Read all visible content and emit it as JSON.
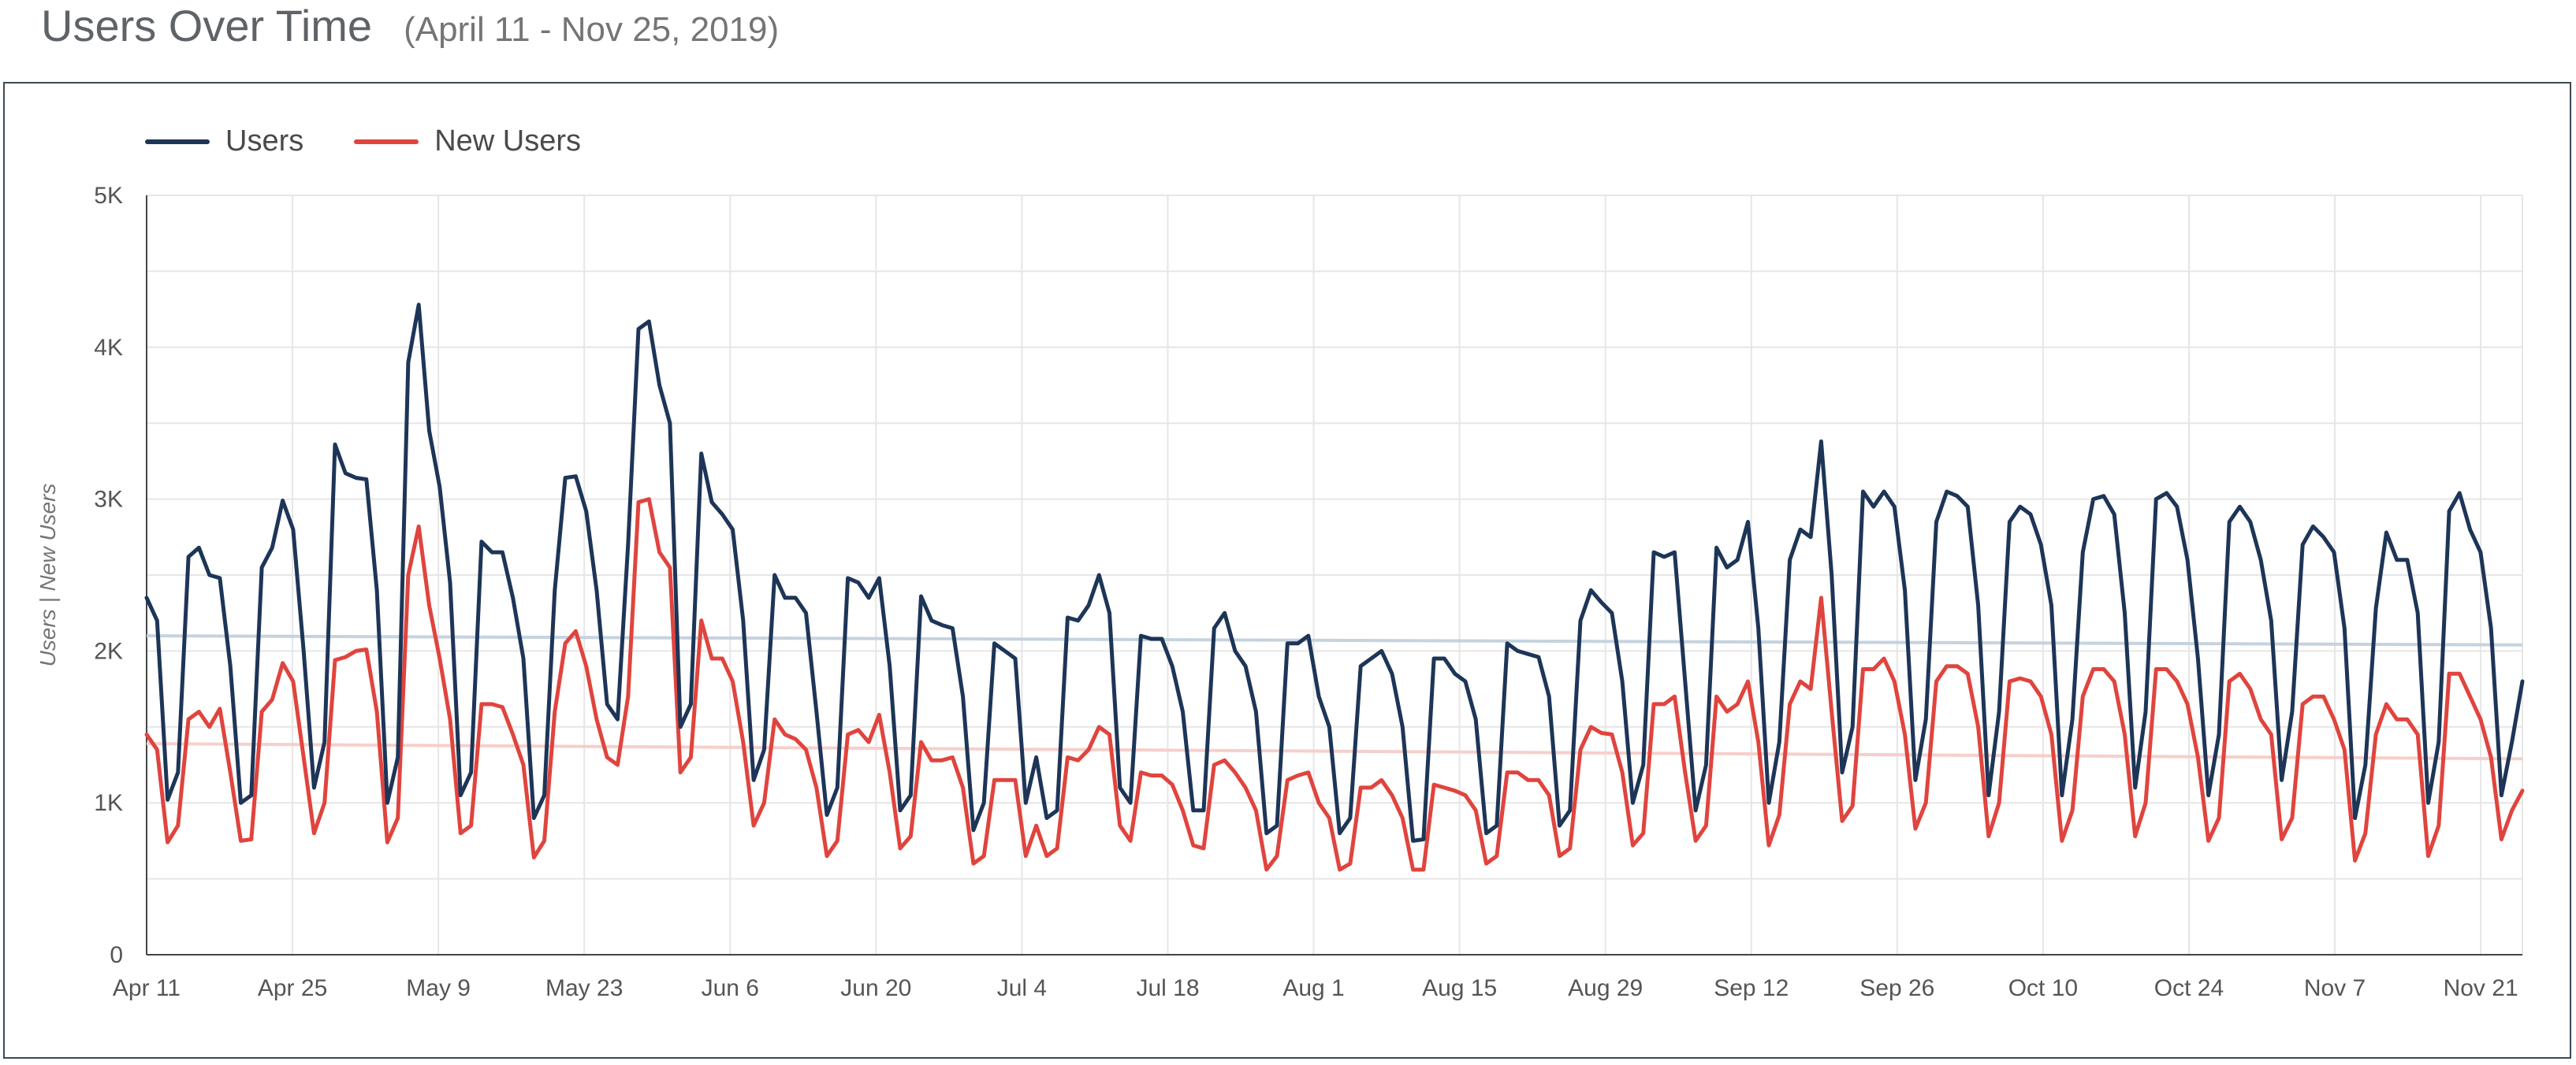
{
  "header": {
    "title": "Users Over Time",
    "subtitle": "(April 11 - Nov 25, 2019)"
  },
  "colors": {
    "users": "#1d3557",
    "new_users": "#e0443e",
    "users_trend": "#c5d3df",
    "new_users_trend": "#f6cfcb",
    "grid": "#e6e6e6"
  },
  "chart_data": {
    "type": "line",
    "title": "Users Over Time",
    "subtitle": "(April 11 - Nov 25, 2019)",
    "xlabel": "",
    "ylabel": "Users | New Users",
    "ylim": [
      0,
      5000
    ],
    "y_ticks": [
      "0",
      "1K",
      "2K",
      "3K",
      "4K",
      "5K"
    ],
    "x_range": [
      "2019-04-11",
      "2019-11-25"
    ],
    "x_ticks": [
      {
        "date": "2019-04-11",
        "label": "Apr 11"
      },
      {
        "date": "2019-04-25",
        "label": "Apr 25"
      },
      {
        "date": "2019-05-09",
        "label": "May 9"
      },
      {
        "date": "2019-05-23",
        "label": "May 23"
      },
      {
        "date": "2019-06-06",
        "label": "Jun 6"
      },
      {
        "date": "2019-06-20",
        "label": "Jun 20"
      },
      {
        "date": "2019-07-04",
        "label": "Jul 4"
      },
      {
        "date": "2019-07-18",
        "label": "Jul 18"
      },
      {
        "date": "2019-08-01",
        "label": "Aug 1"
      },
      {
        "date": "2019-08-15",
        "label": "Aug 15"
      },
      {
        "date": "2019-08-29",
        "label": "Aug 29"
      },
      {
        "date": "2019-09-12",
        "label": "Sep 12"
      },
      {
        "date": "2019-09-26",
        "label": "Sep 26"
      },
      {
        "date": "2019-10-10",
        "label": "Oct 10"
      },
      {
        "date": "2019-10-24",
        "label": "Oct 24"
      },
      {
        "date": "2019-11-07",
        "label": "Nov 7"
      },
      {
        "date": "2019-11-21",
        "label": "Nov 21"
      }
    ],
    "legend_position": "top-left",
    "grid": true,
    "series": [
      {
        "name": "Users",
        "values": [
          2350,
          2200,
          1020,
          1200,
          2620,
          2680,
          2500,
          2480,
          1900,
          1000,
          1050,
          2550,
          2680,
          2990,
          2800,
          2000,
          1100,
          1400,
          3360,
          3170,
          3140,
          3130,
          2400,
          1000,
          1300,
          3900,
          4280,
          3450,
          3080,
          2450,
          1050,
          1200,
          2720,
          2650,
          2650,
          2350,
          1950,
          900,
          1050,
          2400,
          3140,
          3150,
          2920,
          2400,
          1650,
          1550,
          2700,
          4120,
          4170,
          3750,
          3500,
          1500,
          1650,
          3300,
          2980,
          2900,
          2800,
          2200,
          1150,
          1350,
          2500,
          2350,
          2350,
          2250,
          1600,
          920,
          1100,
          2480,
          2450,
          2350,
          2480,
          1900,
          950,
          1050,
          2360,
          2200,
          2170,
          2150,
          1700,
          820,
          1000,
          2050,
          2000,
          1950,
          1000,
          1300,
          900,
          950,
          2220,
          2200,
          2300,
          2500,
          2250,
          1100,
          1000,
          2100,
          2080,
          2080,
          1900,
          1600,
          950,
          950,
          2150,
          2250,
          2000,
          1900,
          1600,
          800,
          850,
          2050,
          2050,
          2100,
          1700,
          1500,
          800,
          900,
          1900,
          1950,
          2000,
          1850,
          1500,
          750,
          760,
          1950,
          1950,
          1850,
          1800,
          1550,
          800,
          850,
          2050,
          2000,
          1980,
          1960,
          1700,
          850,
          950,
          2200,
          2400,
          2320,
          2250,
          1800,
          1000,
          1250,
          2650,
          2620,
          2650,
          1800,
          950,
          1250,
          2680,
          2550,
          2600,
          2850,
          2150,
          1000,
          1400,
          2600,
          2800,
          2750,
          3380,
          2500,
          1200,
          1500,
          3050,
          2950,
          3050,
          2950,
          2400,
          1150,
          1550,
          2850,
          3050,
          3020,
          2950,
          2300,
          1050,
          1600,
          2850,
          2950,
          2900,
          2700,
          2300,
          1050,
          1550,
          2650,
          3000,
          3020,
          2900,
          2250,
          1100,
          1600,
          3000,
          3040,
          2950,
          2600,
          1950,
          1050,
          1450,
          2850,
          2950,
          2850,
          2600,
          2200,
          1150,
          1600,
          2700,
          2820,
          2750,
          2650,
          2150,
          900,
          1250,
          2280,
          2780,
          2600,
          2600,
          2250,
          1000,
          1400,
          2920,
          3040,
          2800,
          2650,
          2150,
          1050,
          1400,
          1800
        ]
      },
      {
        "name": "New Users",
        "values": [
          1450,
          1350,
          740,
          850,
          1550,
          1600,
          1500,
          1620,
          1200,
          750,
          760,
          1600,
          1680,
          1920,
          1800,
          1300,
          800,
          1000,
          1940,
          1960,
          2000,
          2010,
          1600,
          740,
          900,
          2500,
          2820,
          2300,
          1950,
          1550,
          800,
          850,
          1650,
          1650,
          1630,
          1450,
          1250,
          640,
          750,
          1600,
          2050,
          2130,
          1900,
          1550,
          1300,
          1250,
          1700,
          2980,
          3000,
          2650,
          2550,
          1200,
          1300,
          2200,
          1950,
          1950,
          1800,
          1400,
          850,
          1000,
          1550,
          1450,
          1420,
          1350,
          1100,
          650,
          750,
          1450,
          1480,
          1400,
          1580,
          1200,
          700,
          780,
          1400,
          1280,
          1280,
          1300,
          1100,
          600,
          650,
          1150,
          1150,
          1150,
          650,
          850,
          650,
          700,
          1300,
          1280,
          1350,
          1500,
          1450,
          850,
          750,
          1200,
          1180,
          1180,
          1120,
          950,
          720,
          700,
          1250,
          1280,
          1200,
          1100,
          950,
          560,
          650,
          1150,
          1180,
          1200,
          1000,
          900,
          560,
          600,
          1100,
          1100,
          1150,
          1050,
          900,
          560,
          560,
          1120,
          1100,
          1080,
          1050,
          950,
          600,
          650,
          1200,
          1200,
          1150,
          1150,
          1050,
          650,
          700,
          1350,
          1500,
          1460,
          1450,
          1200,
          720,
          800,
          1650,
          1650,
          1700,
          1200,
          750,
          850,
          1700,
          1600,
          1650,
          1800,
          1400,
          720,
          920,
          1650,
          1800,
          1750,
          2350,
          1600,
          880,
          980,
          1880,
          1880,
          1950,
          1800,
          1450,
          830,
          1000,
          1800,
          1900,
          1900,
          1850,
          1500,
          780,
          1000,
          1800,
          1820,
          1800,
          1700,
          1450,
          750,
          950,
          1700,
          1880,
          1880,
          1800,
          1450,
          780,
          1000,
          1880,
          1880,
          1800,
          1650,
          1300,
          750,
          900,
          1800,
          1850,
          1750,
          1550,
          1450,
          760,
          900,
          1650,
          1700,
          1700,
          1550,
          1350,
          620,
          800,
          1450,
          1650,
          1550,
          1550,
          1450,
          650,
          850,
          1850,
          1850,
          1700,
          1550,
          1300,
          760,
          950,
          1080
        ]
      }
    ],
    "trend_lines": [
      {
        "series": "Users",
        "start": 2100,
        "end": 2040
      },
      {
        "series": "New Users",
        "start": 1390,
        "end": 1290
      }
    ]
  }
}
